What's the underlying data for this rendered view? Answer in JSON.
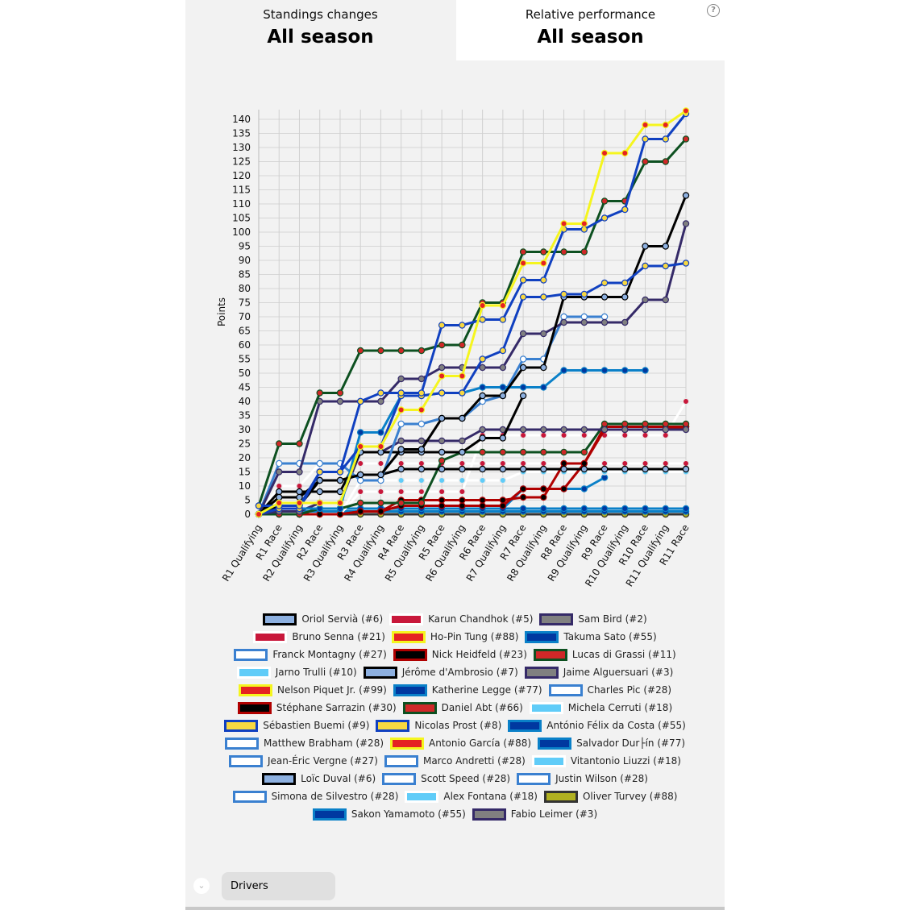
{
  "tabs": [
    {
      "title": "Standings changes",
      "period": "All season"
    },
    {
      "title": "Relative performance",
      "period": "All season"
    }
  ],
  "help_icon": "question-circle-icon",
  "drivers_button": "Drivers",
  "chart_data": {
    "type": "line",
    "ylabel": "Points",
    "ylim": [
      0,
      140
    ],
    "yticks": [
      0,
      5,
      10,
      15,
      20,
      25,
      30,
      35,
      40,
      45,
      50,
      55,
      60,
      65,
      70,
      75,
      80,
      85,
      90,
      95,
      100,
      105,
      110,
      115,
      120,
      125,
      130,
      135,
      140
    ],
    "grid": true,
    "legend_placement": "bottom",
    "categories": [
      "R1 Qualifying",
      "R1 Race",
      "R2 Qualifying",
      "R2 Race",
      "R3 Qualifying",
      "R3 Race",
      "R4 Qualifying",
      "R4 Race",
      "R5 Qualifying",
      "R5 Race",
      "R6 Qualifying",
      "R6 Race",
      "R7 Qualifying",
      "R7 Race",
      "R8 Qualifying",
      "R8 Race",
      "R9 Qualifying",
      "R9 Race",
      "R10 Qualifying",
      "R10 Race",
      "R11 Qualifying",
      "R11 Race"
    ],
    "legend": [
      {
        "name": "Oriol Servià (#6)",
        "border": "#000000",
        "fill": "#8db0e0"
      },
      {
        "name": "Karun Chandhok (#5)",
        "border": "#ffffff",
        "fill": "#c8173a"
      },
      {
        "name": "Sam Bird (#2)",
        "border": "#352a68",
        "fill": "#808080"
      },
      {
        "name": "Bruno Senna (#21)",
        "border": "#ffffff",
        "fill": "#c8173a"
      },
      {
        "name": "Ho-Pin Tung (#88)",
        "border": "#f5f51e",
        "fill": "#e52222"
      },
      {
        "name": "Takuma Sato (#55)",
        "border": "#0a80c8",
        "fill": "#0038a0"
      },
      {
        "name": "Franck Montagny (#27)",
        "border": "#3a80d0",
        "fill": "#ffffff"
      },
      {
        "name": "Nick Heidfeld (#23)",
        "border": "#b00000",
        "fill": "#000000"
      },
      {
        "name": "Lucas di Grassi (#11)",
        "border": "#0d5020",
        "fill": "#d02828"
      },
      {
        "name": "Jarno Trulli (#10)",
        "border": "#ffffff",
        "fill": "#60ccf8"
      },
      {
        "name": "Jérôme d'Ambrosio (#7)",
        "border": "#000000",
        "fill": "#8db0e0"
      },
      {
        "name": "Jaime Alguersuari (#3)",
        "border": "#352a68",
        "fill": "#808080"
      },
      {
        "name": "Nelson Piquet Jr. (#99)",
        "border": "#f5f51e",
        "fill": "#e52222"
      },
      {
        "name": "Katherine Legge (#77)",
        "border": "#0a80c8",
        "fill": "#0038a0"
      },
      {
        "name": "Charles Pic (#28)",
        "border": "#3a80d0",
        "fill": "#ffffff"
      },
      {
        "name": "Stéphane Sarrazin (#30)",
        "border": "#b00000",
        "fill": "#000000"
      },
      {
        "name": "Daniel Abt (#66)",
        "border": "#0d5020",
        "fill": "#d02828"
      },
      {
        "name": "Michela Cerruti (#18)",
        "border": "#ffffff",
        "fill": "#60ccf8"
      },
      {
        "name": "Sébastien Buemi (#9)",
        "border": "#1040c0",
        "fill": "#f8d840"
      },
      {
        "name": "Nicolas Prost (#8)",
        "border": "#1040c0",
        "fill": "#f8d840"
      },
      {
        "name": "António Félix da Costa (#55)",
        "border": "#0a80c8",
        "fill": "#0038a0"
      },
      {
        "name": "Matthew Brabham (#28)",
        "border": "#3a80d0",
        "fill": "#ffffff"
      },
      {
        "name": "Antonio García (#88)",
        "border": "#f5f51e",
        "fill": "#e52222"
      },
      {
        "name": "Salvador Dur├ín (#77)",
        "border": "#0a80c8",
        "fill": "#0038a0"
      },
      {
        "name": "Jean-Éric Vergne (#27)",
        "border": "#3a80d0",
        "fill": "#ffffff"
      },
      {
        "name": "Marco Andretti (#28)",
        "border": "#3a80d0",
        "fill": "#ffffff"
      },
      {
        "name": "Vitantonio Liuzzi (#18)",
        "border": "#ffffff",
        "fill": "#60ccf8"
      },
      {
        "name": "Loïc Duval (#6)",
        "border": "#000000",
        "fill": "#8db0e0"
      },
      {
        "name": "Scott Speed (#28)",
        "border": "#3a80d0",
        "fill": "#ffffff"
      },
      {
        "name": "Justin Wilson (#28)",
        "border": "#3a80d0",
        "fill": "#ffffff"
      },
      {
        "name": "Simona de Silvestro (#28)",
        "border": "#3a80d0",
        "fill": "#ffffff"
      },
      {
        "name": "Alex Fontana (#18)",
        "border": "#ffffff",
        "fill": "#60ccf8"
      },
      {
        "name": "Oliver Turvey (#88)",
        "border": "#333333",
        "fill": "#b0b020"
      },
      {
        "name": "Sakon Yamamoto (#55)",
        "border": "#0a80c8",
        "fill": "#0038a0"
      },
      {
        "name": "Fabio Leimer (#3)",
        "border": "#352a68",
        "fill": "#808080"
      }
    ],
    "legend_rows": [
      3,
      3,
      3,
      3,
      3,
      3,
      3,
      3,
      3,
      3,
      3,
      2
    ],
    "series": [
      {
        "legend": 22,
        "values": [
          0,
          0,
          0,
          0,
          0,
          0,
          0,
          0,
          0,
          0,
          0,
          0,
          0,
          0,
          0,
          0,
          0,
          0,
          0,
          0,
          0,
          0
        ]
      },
      {
        "legend": 32,
        "values": [
          0,
          0,
          0,
          0,
          0,
          0,
          0,
          0,
          0,
          0,
          0,
          0,
          0,
          0,
          0,
          0,
          0,
          0,
          0,
          0,
          0,
          0
        ]
      },
      {
        "legend": 13,
        "values": [
          0,
          1,
          1,
          1,
          1,
          1,
          1,
          1,
          1,
          1,
          1,
          1,
          1,
          1,
          1,
          1,
          1,
          1,
          1,
          1,
          1,
          1
        ]
      },
      {
        "legend": 23,
        "values": [
          0,
          2,
          2,
          2,
          2,
          2,
          2,
          2,
          2,
          2,
          2,
          2,
          2,
          2,
          2,
          2,
          2,
          2,
          2,
          2,
          2,
          2
        ]
      },
      {
        "legend": 5,
        "values": [
          0,
          2,
          2,
          2,
          2,
          2,
          2,
          2,
          2,
          2,
          2,
          2,
          2,
          9,
          9,
          9,
          9,
          13,
          null,
          null,
          null,
          null
        ]
      },
      {
        "legend": 3,
        "values": [
          0,
          10,
          10,
          18,
          18,
          18,
          18,
          18,
          18,
          18,
          18,
          18,
          18,
          18,
          18,
          18,
          18,
          18,
          18,
          18,
          18,
          18
        ]
      },
      {
        "legend": 1,
        "values": [
          0,
          0,
          0,
          0,
          0,
          8,
          8,
          8,
          8,
          8,
          8,
          28,
          28,
          28,
          28,
          28,
          28,
          28,
          28,
          28,
          28,
          40
        ]
      },
      {
        "legend": 9,
        "values": [
          0,
          0,
          0,
          0,
          0,
          12,
          12,
          12,
          12,
          12,
          12,
          12,
          12,
          15,
          15,
          15,
          15,
          15,
          15,
          15,
          15,
          15
        ]
      },
      {
        "legend": 15,
        "values": [
          0,
          0,
          0,
          0,
          0,
          1,
          1,
          3,
          3,
          3,
          3,
          3,
          3,
          9,
          9,
          9,
          18,
          30,
          30,
          30,
          30,
          31
        ]
      },
      {
        "legend": 7,
        "values": [
          0,
          0,
          0,
          0,
          0,
          1,
          1,
          5,
          5,
          5,
          5,
          5,
          5,
          6,
          6,
          18,
          18,
          31,
          31,
          31,
          31,
          31
        ]
      },
      {
        "legend": 16,
        "values": [
          0,
          0,
          0,
          2,
          2,
          4,
          4,
          4,
          4,
          19,
          22,
          22,
          22,
          22,
          22,
          22,
          22,
          32,
          32,
          32,
          32,
          32
        ]
      },
      {
        "legend": 27,
        "values": [
          0,
          3,
          3,
          12,
          12,
          14,
          14,
          16,
          16,
          16,
          16,
          16,
          16,
          16,
          16,
          16,
          16,
          16,
          16,
          16,
          16,
          16
        ]
      },
      {
        "legend": 11,
        "values": [
          0,
          1,
          1,
          4,
          4,
          22,
          22,
          26,
          26,
          26,
          26,
          30,
          30,
          30,
          30,
          30,
          30,
          30,
          30,
          30,
          30,
          30
        ]
      },
      {
        "legend": 10,
        "values": [
          0,
          8,
          8,
          8,
          8,
          22,
          22,
          22,
          22,
          22,
          22,
          27,
          27,
          42,
          null,
          null,
          null,
          null,
          null,
          null,
          null,
          null
        ]
      },
      {
        "legend": 6,
        "values": [
          0,
          18,
          18,
          18,
          18,
          12,
          12,
          32,
          32,
          34,
          34,
          40,
          42,
          55,
          55,
          70,
          70,
          70,
          null,
          null,
          null,
          null
        ]
      },
      {
        "legend": 20,
        "values": [
          0,
          2,
          2,
          2,
          2,
          29,
          29,
          42,
          42,
          43,
          43,
          45,
          45,
          45,
          45,
          51,
          51,
          51,
          51,
          51,
          null,
          null
        ]
      },
      {
        "legend": 2,
        "values": [
          0,
          15,
          15,
          40,
          40,
          40,
          40,
          48,
          48,
          52,
          52,
          52,
          52,
          64,
          64,
          68,
          68,
          68,
          68,
          76,
          76,
          103
        ]
      },
      {
        "legend": 0,
        "values": [
          0,
          6,
          6,
          12,
          12,
          14,
          14,
          23,
          23,
          34,
          34,
          42,
          42,
          52,
          52,
          77,
          77,
          77,
          77,
          95,
          95,
          113
        ]
      },
      {
        "legend": 19,
        "values": [
          0,
          2,
          2,
          15,
          15,
          24,
          24,
          42,
          42,
          43,
          43,
          55,
          58,
          77,
          77,
          78,
          78,
          82,
          82,
          88,
          88,
          89
        ]
      },
      {
        "legend": 8,
        "values": [
          3,
          25,
          25,
          43,
          43,
          58,
          58,
          58,
          58,
          60,
          60,
          75,
          75,
          93,
          93,
          93,
          93,
          111,
          111,
          125,
          125,
          133
        ]
      },
      {
        "legend": 18,
        "values": [
          3,
          3,
          3,
          15,
          15,
          40,
          43,
          43,
          43,
          67,
          67,
          69,
          69,
          83,
          83,
          101,
          101,
          105,
          108,
          133,
          133,
          142
        ]
      },
      {
        "legend": 12,
        "values": [
          0,
          4,
          4,
          4,
          4,
          24,
          24,
          37,
          37,
          49,
          49,
          74,
          74,
          89,
          89,
          103,
          103,
          128,
          128,
          138,
          138,
          143
        ]
      }
    ]
  }
}
